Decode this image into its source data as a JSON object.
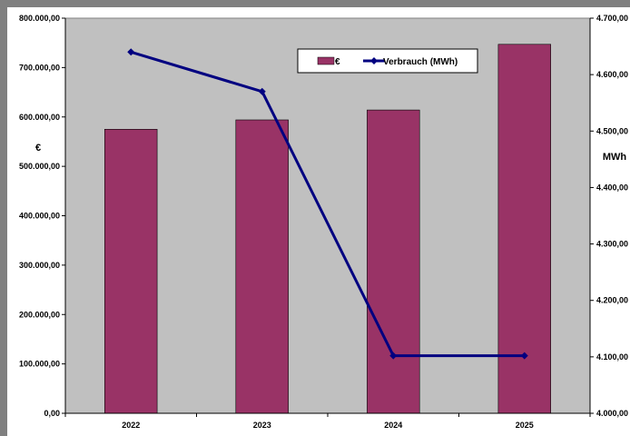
{
  "chart_data": {
    "type": "bar",
    "categories": [
      "2022",
      "2023",
      "2024",
      "2025"
    ],
    "series": [
      {
        "name": "€",
        "type": "bar",
        "axis": "left",
        "color": "#993366",
        "values": [
          575000,
          594000,
          614000,
          747000
        ]
      },
      {
        "name": "Verbrauch (MWh)",
        "type": "line",
        "axis": "right",
        "color": "#000080",
        "values": [
          4640,
          4570,
          4102,
          4102
        ]
      }
    ],
    "ylabel": "€",
    "y2label": "MWh",
    "ylim": [
      0,
      800000
    ],
    "y2lim": [
      4000,
      4700
    ],
    "yticks": [
      "0,00",
      "100.000,00",
      "200.000,00",
      "300.000,00",
      "400.000,00",
      "500.000,00",
      "600.000,00",
      "700.000,00",
      "800.000,00"
    ],
    "y2ticks": [
      "4.000,00",
      "4.100,00",
      "4.200,00",
      "4.300,00",
      "4.400,00",
      "4.500,00",
      "4.600,00",
      "4.700,00"
    ],
    "plot_background": "#c0c0c0",
    "grid": false,
    "legend_position": "top-right"
  }
}
